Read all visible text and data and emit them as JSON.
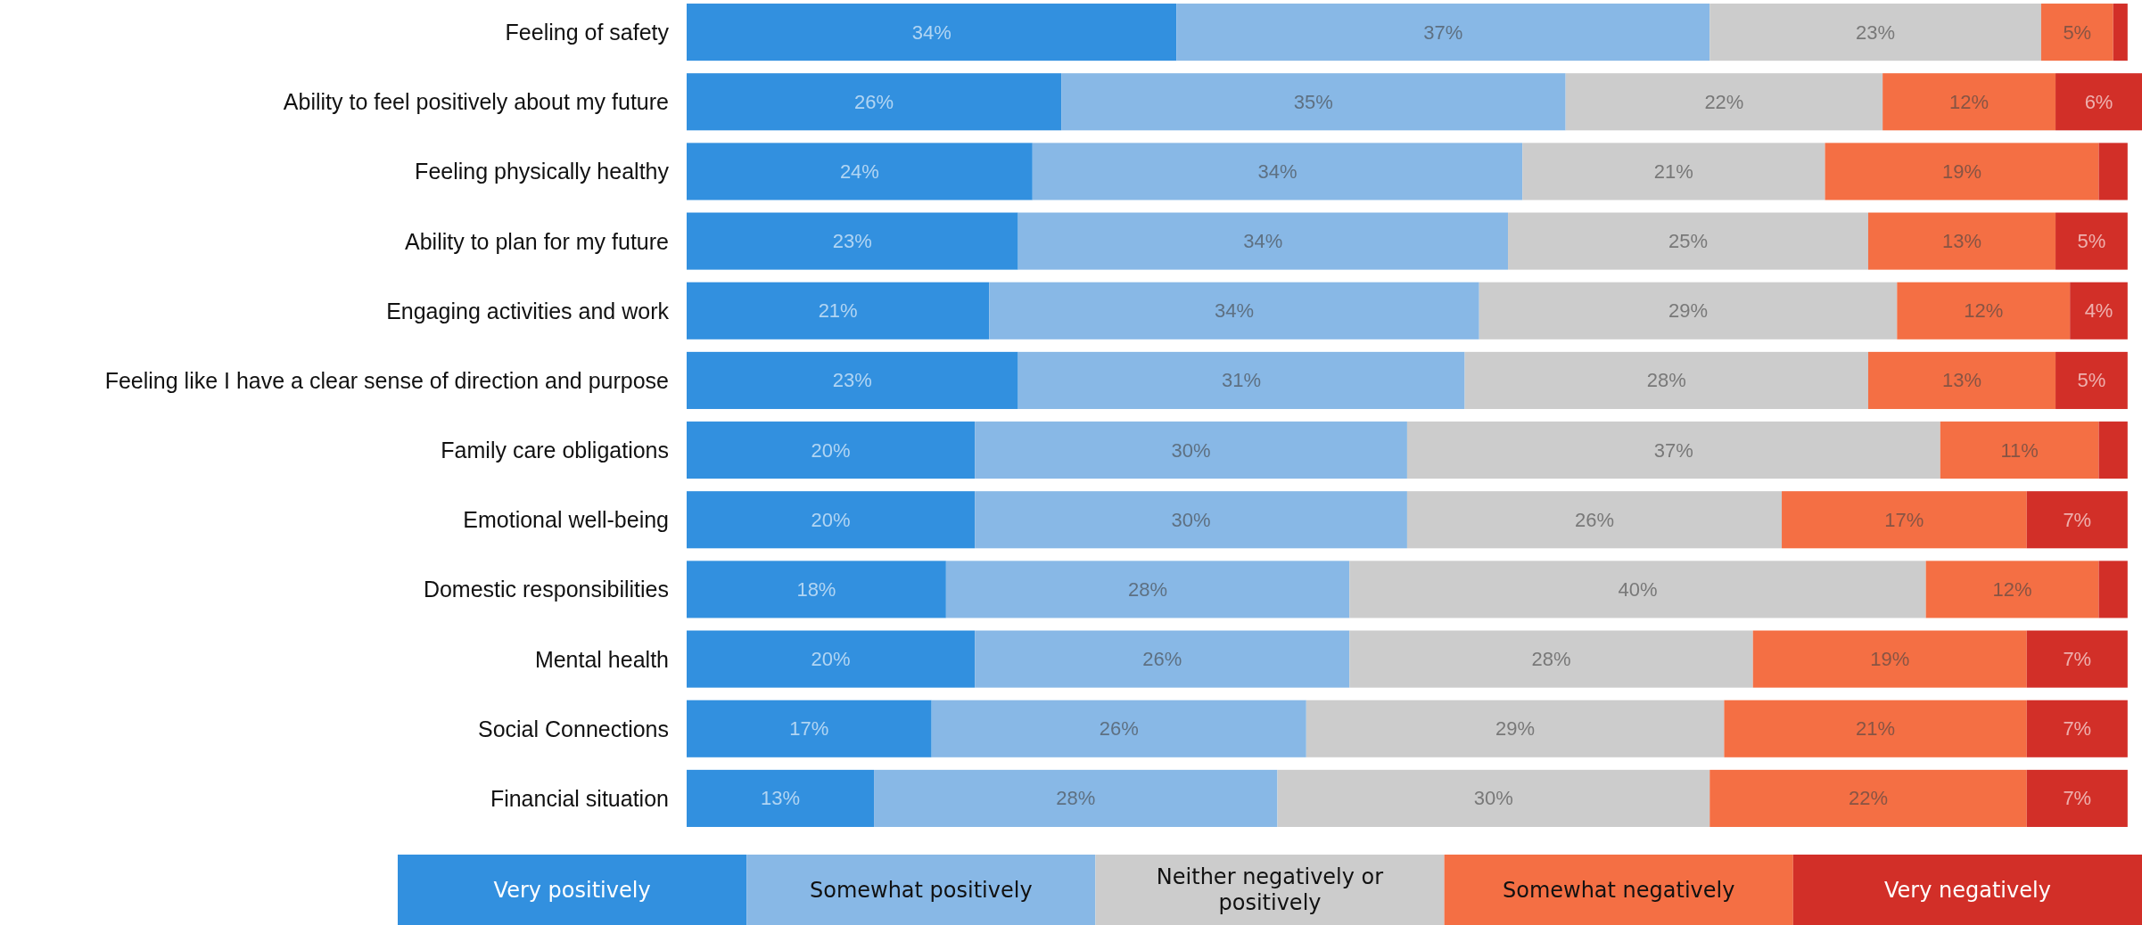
{
  "chart_data": {
    "type": "bar",
    "orientation": "horizontal",
    "stacked": true,
    "legend": "bottom",
    "tick_labels": "y",
    "xlim": [
      0,
      101
    ],
    "categories": [
      "Feeling of safety",
      "Ability to feel positively about my future",
      "Feeling physically healthy",
      "Ability to plan for my future",
      "Engaging activities and work",
      "Feeling like I have a clear sense of direction and purpose",
      "Family care obligations",
      "Emotional well-being",
      "Domestic responsibilities",
      "Mental health",
      "Social Connections",
      "Financial situation"
    ],
    "series": [
      {
        "name": "Very positively",
        "color": "#3290df",
        "values": [
          34,
          26,
          24,
          23,
          21,
          23,
          20,
          20,
          18,
          20,
          17,
          13
        ],
        "value_labels": [
          "34%",
          "26%",
          "24%",
          "23%",
          "21%",
          "23%",
          "20%",
          "20%",
          "18%",
          "20%",
          "17%",
          "13%"
        ]
      },
      {
        "name": "Somewhat positively",
        "color": "#88b8e6",
        "values": [
          37,
          35,
          34,
          34,
          34,
          31,
          30,
          30,
          28,
          26,
          26,
          28
        ],
        "value_labels": [
          "37%",
          "35%",
          "34%",
          "34%",
          "34%",
          "31%",
          "30%",
          "30%",
          "28%",
          "26%",
          "26%",
          "28%"
        ]
      },
      {
        "name": "Neither negatively or positively",
        "color": "#cccccc",
        "values": [
          23,
          22,
          21,
          25,
          29,
          28,
          37,
          26,
          40,
          28,
          29,
          30
        ],
        "value_labels": [
          "23%",
          "22%",
          "21%",
          "25%",
          "29%",
          "28%",
          "37%",
          "26%",
          "40%",
          "28%",
          "29%",
          "30%"
        ]
      },
      {
        "name": "Somewhat negatively",
        "color": "#f46f44",
        "values": [
          5,
          12,
          19,
          13,
          12,
          13,
          11,
          17,
          12,
          19,
          21,
          22
        ],
        "value_labels": [
          "5%",
          "12%",
          "19%",
          "13%",
          "12%",
          "13%",
          "11%",
          "17%",
          "12%",
          "19%",
          "21%",
          "22%"
        ]
      },
      {
        "name": "Very negatively",
        "color": "#d22f28",
        "values": [
          1,
          6,
          2,
          5,
          4,
          5,
          2,
          7,
          2,
          7,
          7,
          7
        ],
        "value_labels": [
          null,
          "6%",
          null,
          "5%",
          "4%",
          "5%",
          null,
          "7%",
          null,
          "7%",
          "7%",
          "7%"
        ]
      }
    ]
  }
}
